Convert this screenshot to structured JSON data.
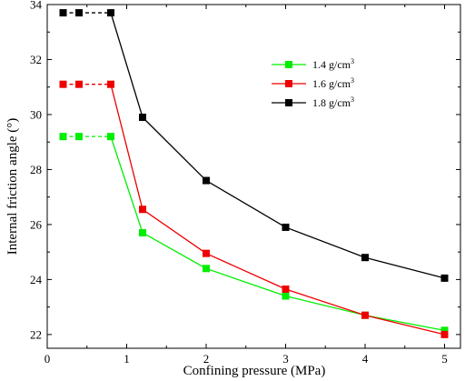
{
  "chart_data": {
    "type": "line",
    "xlabel": "Confining pressure (MPa)",
    "ylabel": "Internal friction angle (°)",
    "xlim": [
      0,
      5.2
    ],
    "ylim": [
      21.5,
      34
    ],
    "xticks": [
      0,
      1,
      2,
      3,
      4,
      5
    ],
    "yticks": [
      22,
      24,
      26,
      28,
      30,
      32,
      34
    ],
    "grid": false,
    "legend_position": "top-right",
    "series": [
      {
        "name": "1.4 g/cm",
        "name_sup": "3",
        "color": "#00ee00",
        "marker": "square",
        "x": [
          0.2,
          0.4,
          0.8,
          1.2,
          2,
          3,
          4,
          5
        ],
        "y": [
          29.2,
          29.2,
          29.2,
          25.7,
          24.4,
          23.4,
          22.7,
          22.15
        ]
      },
      {
        "name": "1.6 g/cm",
        "name_sup": "3",
        "color": "#ee0000",
        "marker": "square",
        "x": [
          0.2,
          0.4,
          0.8,
          1.2,
          2,
          3,
          4,
          5
        ],
        "y": [
          31.1,
          31.1,
          31.1,
          26.55,
          24.95,
          23.65,
          22.7,
          22.0
        ]
      },
      {
        "name": "1.8 g/cm",
        "name_sup": "3",
        "color": "#000000",
        "marker": "square",
        "x": [
          0.2,
          0.4,
          0.8,
          1.2,
          2,
          3,
          4,
          5
        ],
        "y": [
          33.7,
          33.7,
          33.7,
          29.9,
          27.6,
          25.9,
          24.8,
          24.05
        ]
      }
    ]
  }
}
